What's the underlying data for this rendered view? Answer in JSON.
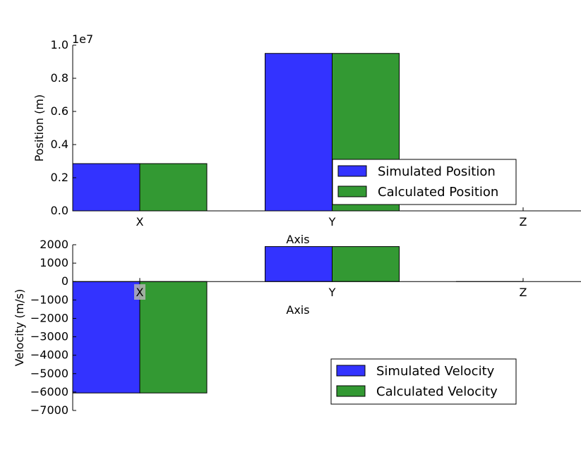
{
  "chart_data": [
    {
      "type": "bar",
      "categories": [
        "X",
        "Y",
        "Z"
      ],
      "series": [
        {
          "name": "Simulated Position",
          "values": [
            2850000,
            9500000,
            0
          ],
          "color": "#3333ff"
        },
        {
          "name": "Calculated Position",
          "values": [
            2850000,
            9500000,
            0
          ],
          "color": "#339933"
        }
      ],
      "xlabel": "Axis",
      "ylabel": "Position (m)",
      "ylim": [
        0,
        10000000
      ],
      "yticks": [
        0,
        2000000,
        4000000,
        6000000,
        8000000,
        10000000
      ],
      "ytick_labels": [
        "0.0",
        "0.2",
        "0.4",
        "0.6",
        "0.8",
        "1.0"
      ],
      "offset_text": "1e7",
      "legend": "lower-right",
      "grid": false
    },
    {
      "type": "bar",
      "categories": [
        "X",
        "Y",
        "Z"
      ],
      "series": [
        {
          "name": "Simulated Velocity",
          "values": [
            -6050,
            1900,
            0
          ],
          "color": "#3333ff"
        },
        {
          "name": "Calculated Velocity",
          "values": [
            -6050,
            1900,
            0
          ],
          "color": "#339933"
        }
      ],
      "xlabel": "Axis",
      "ylabel": "Velocity (m/s)",
      "ylim": [
        -7000,
        2000
      ],
      "yticks": [
        -7000,
        -6000,
        -5000,
        -4000,
        -3000,
        -2000,
        -1000,
        0,
        1000,
        2000
      ],
      "ytick_labels": [
        "−7000",
        "−6000",
        "−5000",
        "−4000",
        "−3000",
        "−2000",
        "−1000",
        "0",
        "1000",
        "2000"
      ],
      "legend": "lower-right",
      "grid": false
    }
  ]
}
